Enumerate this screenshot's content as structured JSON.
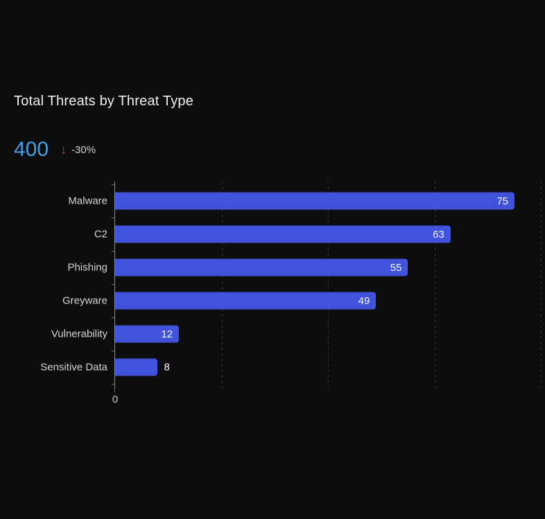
{
  "header": {
    "title": "Total Threats by Threat Type"
  },
  "kpi": {
    "value": "400",
    "arrow_icon": "arrow-down",
    "arrow_glyph": "↓",
    "delta": "-30%"
  },
  "chart_data": {
    "type": "bar",
    "orientation": "horizontal",
    "title": "Total Threats by Threat Type",
    "categories": [
      "Malware",
      "C2",
      "Phishing",
      "Greyware",
      "Vulnerability",
      "Sensitive Data"
    ],
    "values": [
      75,
      63,
      55,
      49,
      12,
      8
    ],
    "xlabel": "",
    "ylabel": "",
    "xlim": [
      0,
      80
    ],
    "x_gridlines": [
      20,
      40,
      60,
      80
    ],
    "x_tick_labels": [
      "0"
    ],
    "grid": "dashed-vertical",
    "legend": "none",
    "value_labels": "end-of-bar"
  },
  "colors": {
    "background": "#0D0D0D",
    "bar": "#4253DB",
    "kpi_value": "#44A1E9",
    "kpi_arrow": "#CB2C74",
    "title_text": "#F1F1F1",
    "category_text": "#D4D4D4",
    "value_text": "#F5F5F5",
    "axis_line": "#8C8C8C",
    "gridline": "#3A3A3A"
  }
}
